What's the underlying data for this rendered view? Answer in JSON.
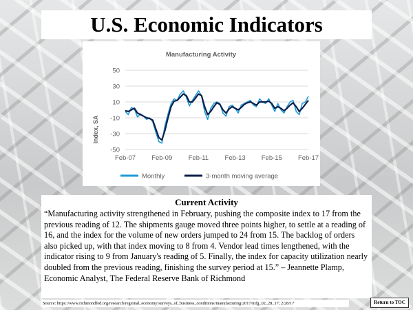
{
  "slide": {
    "title": "U.S. Economic Indicators",
    "section_heading": "Current Activity",
    "quote": "“Manufacturing activity strengthened in February, pushing the composite index to 17 from the previous reading of 12.  The shipments gauge moved three points higher, to settle at a reading of 16, and the index for the volume of new orders jumped to 24 from 15.  The backlog of orders also picked up, with that index moving to 8 from 4.  Vendor lead times lengthened, with the indicator rising to 9 from January's reading of 5.  Finally, the index for capacity utilization nearly doubled from the previous reading, finishing the survey period at 15.” – Jeannette Plamp, Economic Analyst, The Federal Reserve Bank of Richmond",
    "source": "Source: https://www.richmondfed.org/research/regional_economy/surveys_of_business_conditions/manufacturing/2017/mfg_02_28_17; 2/28/17",
    "return_button": "Return to TOC"
  },
  "colors": {
    "monthly": "#1f9ad6",
    "moving_average": "#0d1f4a",
    "grid": "#d9d9d9",
    "text": "#5f5f5f"
  },
  "chart_data": {
    "type": "line",
    "title": "Manufacturing Activity",
    "ylabel": "Index, SA",
    "xlabel": "",
    "ylim": [
      -50,
      50
    ],
    "yticks": [
      50,
      30,
      10,
      -10,
      -30,
      -50
    ],
    "xticks": [
      "Feb-07",
      "Feb-09",
      "Feb-11",
      "Feb-13",
      "Feb-15",
      "Feb-17"
    ],
    "grid": true,
    "legend_position": "bottom",
    "x": [
      "Feb-07",
      "Apr-07",
      "Jun-07",
      "Aug-07",
      "Oct-07",
      "Dec-07",
      "Feb-08",
      "Apr-08",
      "Jun-08",
      "Aug-08",
      "Oct-08",
      "Dec-08",
      "Feb-09",
      "Apr-09",
      "Jun-09",
      "Aug-09",
      "Oct-09",
      "Dec-09",
      "Feb-10",
      "Apr-10",
      "Jun-10",
      "Aug-10",
      "Oct-10",
      "Dec-10",
      "Feb-11",
      "Apr-11",
      "Jun-11",
      "Aug-11",
      "Oct-11",
      "Dec-11",
      "Feb-12",
      "Apr-12",
      "Jun-12",
      "Aug-12",
      "Oct-12",
      "Dec-12",
      "Feb-13",
      "Apr-13",
      "Jun-13",
      "Aug-13",
      "Oct-13",
      "Dec-13",
      "Feb-14",
      "Apr-14",
      "Jun-14",
      "Aug-14",
      "Oct-14",
      "Dec-14",
      "Feb-15",
      "Apr-15",
      "Jun-15",
      "Aug-15",
      "Oct-15",
      "Dec-15",
      "Feb-16",
      "Apr-16",
      "Jun-16",
      "Aug-16",
      "Oct-16",
      "Dec-16",
      "Feb-17"
    ],
    "series": [
      {
        "name": "Monthly",
        "values": [
          -2,
          -6,
          3,
          1,
          -9,
          -5,
          -8,
          -12,
          -10,
          -15,
          -28,
          -40,
          -42,
          -20,
          -5,
          8,
          14,
          12,
          20,
          24,
          16,
          5,
          12,
          18,
          24,
          18,
          -2,
          -12,
          2,
          8,
          10,
          8,
          -4,
          -8,
          4,
          6,
          2,
          -4,
          6,
          8,
          10,
          12,
          6,
          4,
          14,
          10,
          8,
          14,
          6,
          -2,
          8,
          0,
          -4,
          4,
          10,
          12,
          -2,
          -6,
          8,
          10,
          17
        ]
      },
      {
        "name": "3-month moving average",
        "values": [
          -1,
          -2,
          0,
          2,
          -4,
          -6,
          -8,
          -10,
          -11,
          -13,
          -24,
          -35,
          -38,
          -26,
          -10,
          4,
          11,
          12,
          16,
          20,
          18,
          10,
          10,
          15,
          20,
          18,
          4,
          -6,
          -2,
          4,
          9,
          7,
          0,
          -4,
          1,
          4,
          2,
          0,
          3,
          7,
          9,
          10,
          8,
          6,
          10,
          10,
          10,
          11,
          8,
          2,
          4,
          2,
          -1,
          2,
          6,
          9,
          4,
          -2,
          2,
          7,
          12
        ]
      }
    ]
  }
}
